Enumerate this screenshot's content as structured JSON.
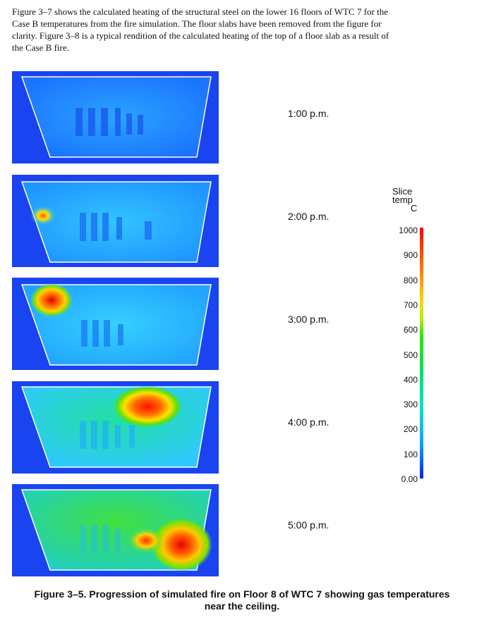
{
  "intro": {
    "lines": [
      "Figure 3–7 shows the calculated heating of the structural steel on the lower 16 floors of WTC 7 for the",
      "Case B temperatures from the fire simulation.  The floor slabs have been removed from the figure for",
      "clarity.  Figure 3–8 is a typical rendition of the calculated heating of the top of a floor slab as a result of",
      "the Case B fire."
    ]
  },
  "panels": [
    {
      "time": "1:00 p.m."
    },
    {
      "time": "2:00 p.m."
    },
    {
      "time": "3:00 p.m."
    },
    {
      "time": "4:00 p.m."
    },
    {
      "time": "5:00 p.m."
    }
  ],
  "legend": {
    "title_line1": "Slice",
    "title_line2": "temp",
    "unit": "C",
    "ticks": [
      "1000",
      "900",
      "800",
      "700",
      "600",
      "500",
      "400",
      "300",
      "200",
      "100",
      "0.00"
    ],
    "colors": {
      "max": "#ff0000",
      "mid": "#00e060",
      "min": "#0020ff"
    }
  },
  "caption": {
    "line1": "Figure 3–5.  Progression of simulated fire on Floor 8 of WTC 7 showing gas temperatures",
    "line2": "near the ceiling."
  }
}
